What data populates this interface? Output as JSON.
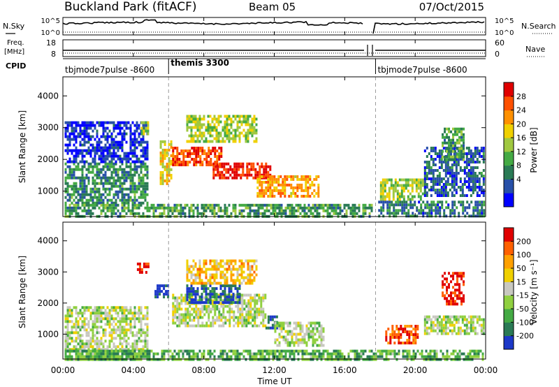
{
  "header": {
    "station": "Buckland Park (fitACF)",
    "beam": "Beam 05",
    "date": "07/Oct/2015"
  },
  "noise_panel": {
    "left_label": "N.Sky",
    "left_ticks": [
      "10^5",
      "10^0"
    ],
    "right_ticks": [
      "10^5",
      "10^0"
    ],
    "right_label": "N.Search"
  },
  "freq_panel": {
    "left_label_1": "Freq.",
    "left_label_2": "[MHz]",
    "left_ticks": [
      "18",
      "8"
    ],
    "right_ticks": [
      "60",
      "0"
    ],
    "right_label": "Nave"
  },
  "cpid_panel": {
    "label": "CPID",
    "modes": [
      {
        "name": "tbjmode7pulse -8600",
        "start_hour": 0
      },
      {
        "name": "themis 3300",
        "start_hour": 6
      },
      {
        "name": "tbjmode7pulse -8600",
        "start_hour": 17.75
      }
    ]
  },
  "time_axis": {
    "label": "Time UT",
    "range_hours": [
      0,
      24
    ],
    "ticks": [
      "00:00",
      "04:00",
      "08:00",
      "12:00",
      "16:00",
      "20:00",
      "00:00"
    ]
  },
  "chart_data": [
    {
      "type": "heatmap",
      "panel": "power",
      "ylabel": "Slant Range [km]",
      "ylim": [
        200,
        4600
      ],
      "yticks": [
        "4000",
        "3000",
        "2000",
        "1000"
      ],
      "colorbar": {
        "label": "Power [dB]",
        "ticks": [
          "28",
          "24",
          "20",
          "16",
          "12",
          "8",
          "4"
        ],
        "colors": [
          "#0000ff",
          "#2850a8",
          "#2a7a55",
          "#44aa44",
          "#a0c840",
          "#f0d000",
          "#ff9000",
          "#ff5000",
          "#e00000"
        ]
      },
      "regions": [
        {
          "t": [
            0.1,
            4.8
          ],
          "r": [
            600,
            1900
          ],
          "level": 0.3
        },
        {
          "t": [
            0.1,
            4.8
          ],
          "r": [
            1900,
            3200
          ],
          "level": 0.1
        },
        {
          "t": [
            4.3,
            4.8
          ],
          "r": [
            2800,
            3200
          ],
          "level": 0.5
        },
        {
          "t": [
            5.5,
            6.2
          ],
          "r": [
            1200,
            2600
          ],
          "level": 0.6
        },
        {
          "t": [
            6.2,
            9.0
          ],
          "r": [
            1800,
            2400
          ],
          "level": 0.85
        },
        {
          "t": [
            8.5,
            11.8
          ],
          "r": [
            1400,
            1900
          ],
          "level": 0.95
        },
        {
          "t": [
            7.0,
            11.0
          ],
          "r": [
            2600,
            3400
          ],
          "level": 0.5
        },
        {
          "t": [
            11.0,
            14.5
          ],
          "r": [
            800,
            1500
          ],
          "level": 0.7
        },
        {
          "t": [
            0.1,
            17.5
          ],
          "r": [
            200,
            600
          ],
          "level": 0.35
        },
        {
          "t": [
            18.0,
            20.5
          ],
          "r": [
            700,
            1400
          ],
          "level": 0.5
        },
        {
          "t": [
            20.5,
            23.9
          ],
          "r": [
            900,
            2400
          ],
          "level": 0.2
        },
        {
          "t": [
            21.5,
            22.8
          ],
          "r": [
            2000,
            3000
          ],
          "level": 0.35
        },
        {
          "t": [
            17.9,
            23.9
          ],
          "r": [
            200,
            700
          ],
          "level": 0.25
        }
      ]
    },
    {
      "type": "heatmap",
      "panel": "velocity",
      "ylabel": "Slant Range [km]",
      "ylim": [
        200,
        4600
      ],
      "yticks": [
        "4000",
        "3000",
        "2000",
        "1000"
      ],
      "colorbar": {
        "label": "Velocity [m s⁻¹]",
        "ticks": [
          "200",
          "100",
          "50",
          "15",
          "-15",
          "-50",
          "-100",
          "-200"
        ],
        "colors": [
          "#1c38c8",
          "#2a7a55",
          "#44aa44",
          "#90d040",
          "#c8c8c0",
          "#f0d000",
          "#ffa000",
          "#ff6000",
          "#e00000"
        ]
      },
      "regions": [
        {
          "t": [
            0.1,
            4.8
          ],
          "r": [
            500,
            1900
          ],
          "level": 0.45
        },
        {
          "t": [
            0.1,
            4.8
          ],
          "r": [
            200,
            500
          ],
          "level": 0.3
        },
        {
          "t": [
            4.2,
            4.8
          ],
          "r": [
            3000,
            3300
          ],
          "level": 0.9
        },
        {
          "t": [
            5.2,
            6.0
          ],
          "r": [
            2200,
            2600
          ],
          "level": 0.05
        },
        {
          "t": [
            6.2,
            11.5
          ],
          "r": [
            1300,
            2300
          ],
          "level": 0.45
        },
        {
          "t": [
            7.0,
            10.0
          ],
          "r": [
            2000,
            2600
          ],
          "level": 0.1
        },
        {
          "t": [
            7.0,
            11.0
          ],
          "r": [
            2600,
            3400
          ],
          "level": 0.65
        },
        {
          "t": [
            11.5,
            12.2
          ],
          "r": [
            1200,
            1600
          ],
          "level": 0.05
        },
        {
          "t": [
            12.0,
            14.8
          ],
          "r": [
            600,
            1400
          ],
          "level": 0.45
        },
        {
          "t": [
            18.3,
            20.2
          ],
          "r": [
            700,
            1300
          ],
          "level": 0.85
        },
        {
          "t": [
            20.5,
            23.9
          ],
          "r": [
            1000,
            1600
          ],
          "level": 0.45
        },
        {
          "t": [
            21.5,
            22.8
          ],
          "r": [
            2000,
            3000
          ],
          "level": 0.95
        },
        {
          "t": [
            0.1,
            23.9
          ],
          "r": [
            200,
            500
          ],
          "level": 0.3
        }
      ]
    }
  ]
}
